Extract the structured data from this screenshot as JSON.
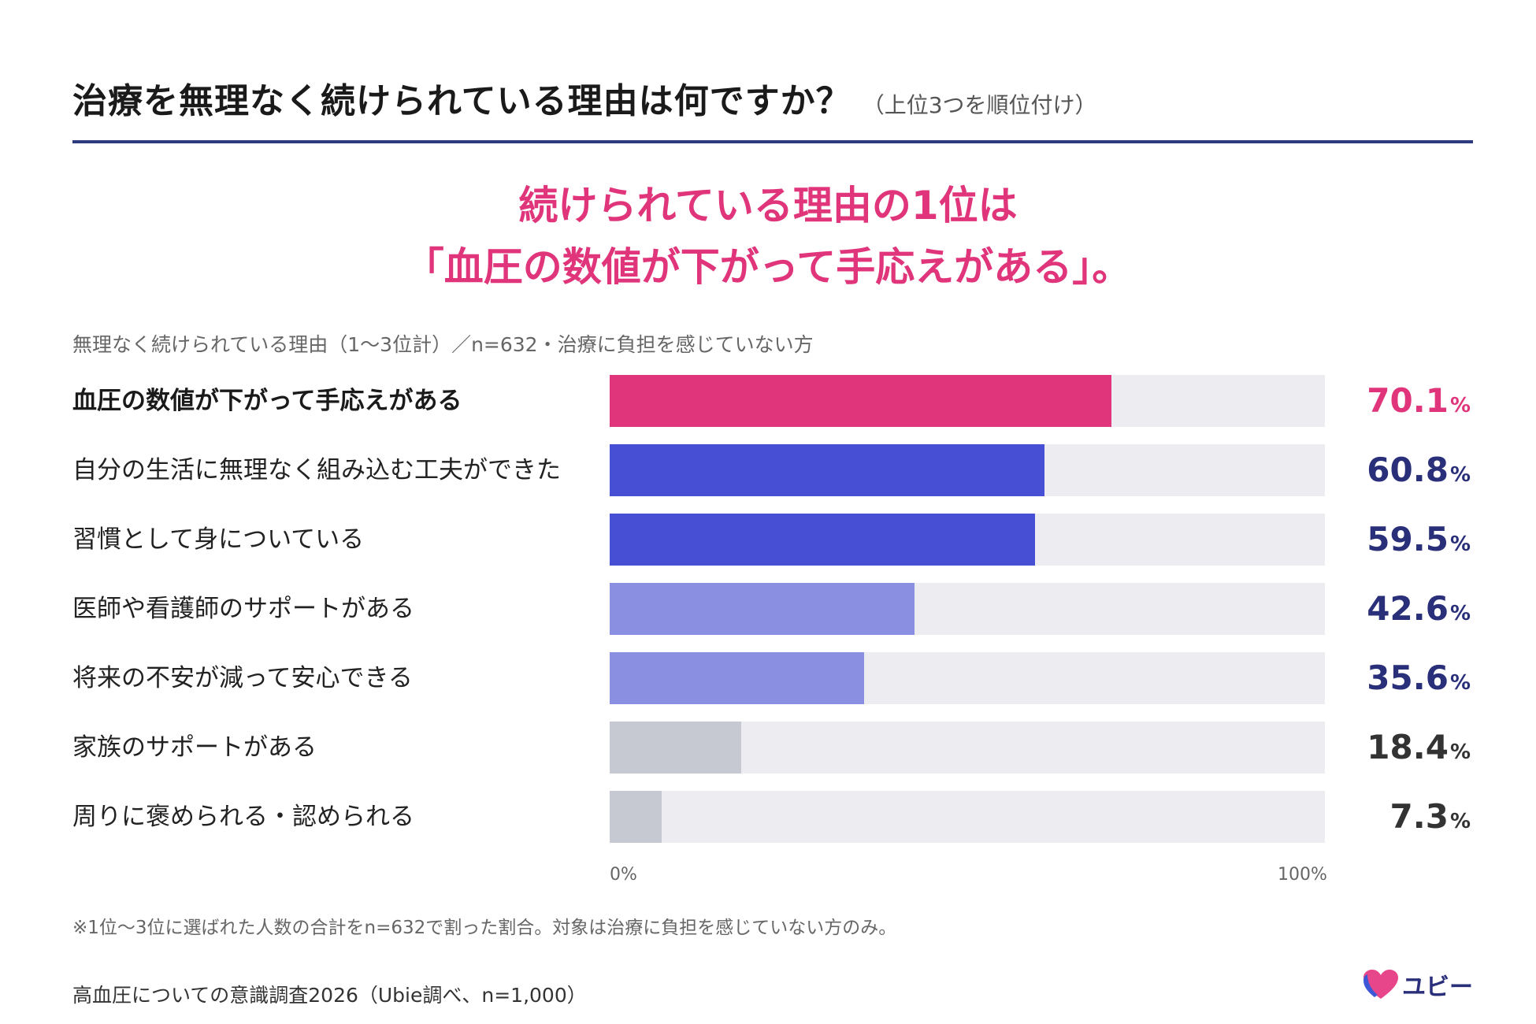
{
  "header": {
    "title": "治療を無理なく続けられている理由は何ですか？",
    "subtitle": "（上位3つを順位付け）"
  },
  "headline": {
    "line1": "続けられている理由の1位は",
    "line2": "「血圧の数値が下がって手応えがある」。"
  },
  "caption": "無理なく続けられている理由（1〜3位計）／n=632・治療に負担を感じていない方",
  "colors": {
    "accent_pink": "#e0357a",
    "bar_top": "#e0357a",
    "bar_dark_blue": "#4750d4",
    "bar_light_blue": "#8b8fe2",
    "bar_gray": "#c7c9d2",
    "track": "#ececf1",
    "value_navy": "#2a2f7a",
    "value_gray": "#333333"
  },
  "chart_data": {
    "type": "bar",
    "orientation": "horizontal",
    "categories": [
      "血圧の数値が下がって手応えがある",
      "自分の生活に無理なく組み込む工夫ができた",
      "習慣として身についている",
      "医師や看護師のサポートがある",
      "将来の不安が減って安心できる",
      "家族のサポートがある",
      "周りに褒められる・認められる"
    ],
    "values": [
      70.1,
      60.8,
      59.5,
      42.6,
      35.6,
      18.4,
      7.3
    ],
    "value_labels": [
      "70.1",
      "60.8",
      "59.5",
      "42.6",
      "35.6",
      "18.4",
      "7.3"
    ],
    "unit": "%",
    "xlim": [
      0,
      100
    ],
    "x_tick_labels": [
      "0%",
      "100%"
    ],
    "bar_color_keys": [
      "bar_top",
      "bar_dark_blue",
      "bar_dark_blue",
      "bar_light_blue",
      "bar_light_blue",
      "bar_gray",
      "bar_gray"
    ],
    "value_color_keys": [
      "accent_pink",
      "value_navy",
      "value_navy",
      "value_navy",
      "value_navy",
      "value_gray",
      "value_gray"
    ]
  },
  "footnote": "※1位〜3位に選ばれた人数の合計をn=632で割った割合。対象は治療に負担を感じていない方のみ。",
  "source": "高血圧についての意識調査2026（Ubie調べ、n=1,000）",
  "logo": {
    "icon": "heart-logo-icon",
    "text": "ユビー"
  }
}
